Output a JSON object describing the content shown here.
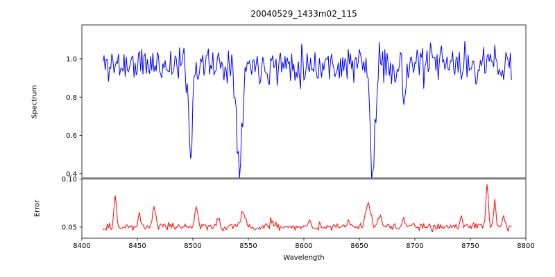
{
  "figure": {
    "background": "#ffffff"
  },
  "chart_data": {
    "type": "line",
    "title": "20040529_1433m02_115",
    "xlabel": "Wavelength",
    "xlim": [
      8400,
      8800
    ],
    "xticks": [
      8400,
      8450,
      8500,
      8550,
      8600,
      8650,
      8700,
      8750,
      8800
    ],
    "x_data_range": [
      8419,
      8787
    ],
    "legend": "none",
    "grid": false,
    "panels": [
      {
        "id": "spectrum",
        "ylabel": "Spectrum",
        "ylim": [
          0.378,
          1.177
        ],
        "yticks": [
          0.4,
          0.6,
          0.8,
          1.0
        ],
        "ytick_labels": [
          "0.4",
          "0.6",
          "0.8",
          "1.0"
        ],
        "line_color": "#0000ff",
        "series": {
          "x_start": 8419,
          "x_end": 8787,
          "x_step": 1,
          "baseline": 0.97,
          "noise_amp": 0.1,
          "seed": 11,
          "absorption_lines": [
            {
              "center": 8498,
              "depth": 0.43,
              "sigma": 1.8
            },
            {
              "center": 8542,
              "depth": 0.49,
              "sigma": 2.5
            },
            {
              "center": 8662,
              "depth": 0.57,
              "sigma": 2.2
            },
            {
              "center": 8690,
              "depth": 0.2,
              "sigma": 1.2
            }
          ]
        }
      },
      {
        "id": "error",
        "ylabel": "Error",
        "ylim": [
          0.0384,
          0.1
        ],
        "yticks": [
          0.05,
          0.1
        ],
        "ytick_labels": [
          "0.05",
          "0.10"
        ],
        "line_color": "#ff0000",
        "series": {
          "x_start": 8419,
          "x_end": 8787,
          "x_step": 1,
          "baseline": 0.0502,
          "noise_amp": 0.004,
          "seed": 29,
          "peaks": [
            {
              "center": 8430,
              "height": 0.031,
              "sigma": 1.2
            },
            {
              "center": 8452,
              "height": 0.013,
              "sigma": 1.0
            },
            {
              "center": 8465,
              "height": 0.022,
              "sigma": 1.4
            },
            {
              "center": 8503,
              "height": 0.02,
              "sigma": 1.6
            },
            {
              "center": 8523,
              "height": 0.01,
              "sigma": 1.2
            },
            {
              "center": 8545,
              "height": 0.014,
              "sigma": 2.0
            },
            {
              "center": 8571,
              "height": 0.007,
              "sigma": 1.5
            },
            {
              "center": 8605,
              "height": 0.007,
              "sigma": 1.5
            },
            {
              "center": 8640,
              "height": 0.006,
              "sigma": 1.5
            },
            {
              "center": 8658,
              "height": 0.026,
              "sigma": 2.0
            },
            {
              "center": 8668,
              "height": 0.012,
              "sigma": 1.5
            },
            {
              "center": 8690,
              "height": 0.009,
              "sigma": 1.2
            },
            {
              "center": 8742,
              "height": 0.008,
              "sigma": 1.5
            },
            {
              "center": 8765,
              "height": 0.045,
              "sigma": 1.1
            },
            {
              "center": 8772,
              "height": 0.026,
              "sigma": 1.0
            },
            {
              "center": 8780,
              "height": 0.012,
              "sigma": 1.0
            }
          ]
        }
      }
    ],
    "key_features": {
      "absorption_line_centers": [
        8498,
        8542,
        8662,
        8690
      ],
      "absorption_line_minima": [
        0.54,
        0.48,
        0.4,
        0.77
      ],
      "continuum_level": 0.97,
      "error_baseline": 0.05,
      "error_max": 0.097,
      "error_spike_centers": [
        8430,
        8465,
        8503,
        8545,
        8658,
        8765,
        8772
      ]
    }
  }
}
